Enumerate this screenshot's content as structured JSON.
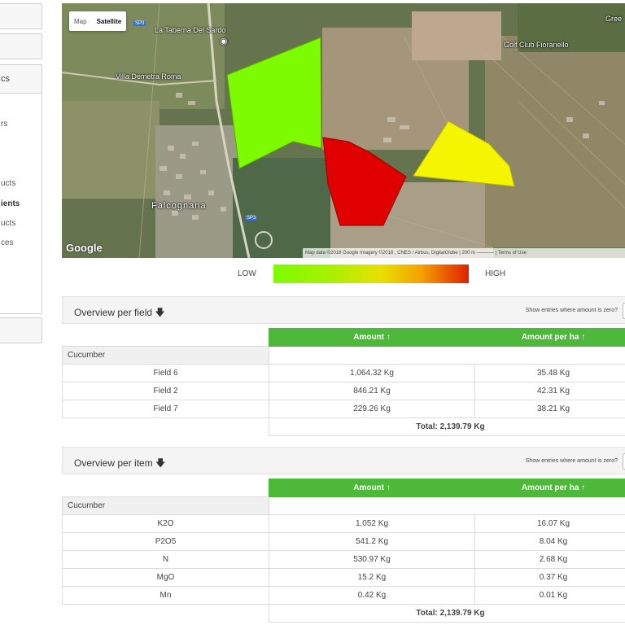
{
  "sidebar": {
    "items": [
      "cs",
      "rs",
      "ucts",
      "ients",
      "ucts",
      "ces"
    ],
    "active_index": 3
  },
  "map": {
    "type_control": [
      "Map",
      "Satellite"
    ],
    "places": [
      "La Taberna Del Sardo",
      "Villa Demetra Roma",
      "Golf Club Fioranello",
      "Gree"
    ],
    "town": "Falcognana",
    "road_badges": [
      "SP3",
      "SP3"
    ],
    "logo": "Google",
    "attribution": "Map data ©2018 Google Imagery ©2018 , CNES / Airbus, DigitalGlobe | 200 m ⎯⎯⎯⎯⎯⎯⎯ | Terms of Use",
    "fields": [
      {
        "name": "Field 6",
        "color": "#7dfb00"
      },
      {
        "name": "Field 2",
        "color": "#e00000"
      },
      {
        "name": "Field 7",
        "color": "#f5f500"
      }
    ]
  },
  "legend": {
    "low": "LOW",
    "high": "HIGH"
  },
  "overview_field": {
    "title": "Overview per field",
    "toggle_label": "Show entries where amount is zero?",
    "headers": {
      "amount": "Amount ↑",
      "amount_per_ha": "Amount per ha ↑"
    },
    "group": "Cucumber",
    "rows": [
      {
        "name": "Field 6",
        "amount": "1,064.32 Kg",
        "per_ha": "35.48 Kg"
      },
      {
        "name": "Field 2",
        "amount": "846.21 Kg",
        "per_ha": "42.31 Kg"
      },
      {
        "name": "Field 7",
        "amount": "229.26 Kg",
        "per_ha": "38.21 Kg"
      }
    ],
    "total": "Total: 2,139.79 Kg"
  },
  "overview_item": {
    "title": "Overview per item",
    "toggle_label": "Show entries where amount is zero?",
    "headers": {
      "amount": "Amount ↑",
      "amount_per_ha": "Amount per ha ↑"
    },
    "group": "Cucumber",
    "rows": [
      {
        "name": "K2O",
        "amount": "1,052 Kg",
        "per_ha": "16.07 Kg"
      },
      {
        "name": "P2O5",
        "amount": "541.2 Kg",
        "per_ha": "8.04 Kg"
      },
      {
        "name": "N",
        "amount": "530.97 Kg",
        "per_ha": "2.68 Kg"
      },
      {
        "name": "MgO",
        "amount": "15.2 Kg",
        "per_ha": "0.37 Kg"
      },
      {
        "name": "Mn",
        "amount": "0.42 Kg",
        "per_ha": "0.01 Kg"
      }
    ],
    "total": "Total: 2,139.79  Kg"
  }
}
